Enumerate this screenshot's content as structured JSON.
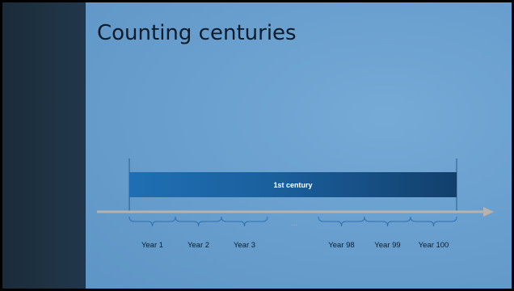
{
  "slide": {
    "title": "Counting centuries"
  },
  "diagram": {
    "century_label": "1st century",
    "ellipsis": "...",
    "years": [
      "Year 1",
      "Year 2",
      "Year 3",
      "Year 98",
      "Year 99",
      "Year 100"
    ]
  },
  "colors": {
    "left_panel": "#1f3344",
    "main_panel": "#6aa0cf",
    "bar_start": "#1f6fb4",
    "bar_end": "#123f6c",
    "axis": "#b8b2ac",
    "brace": "#2f6fb0"
  }
}
